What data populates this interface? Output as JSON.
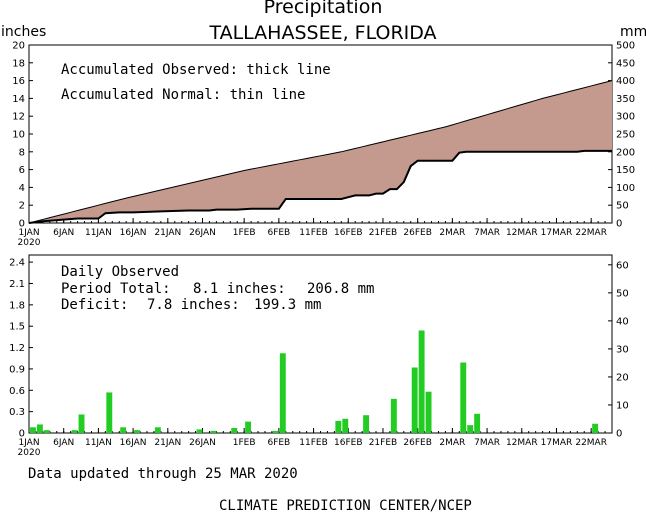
{
  "title": "Precipitation",
  "subtitle": "TALLAHASSEE, FLORIDA",
  "footer": {
    "updated": "Data updated through 25 MAR 2020",
    "credit": "CLIMATE PREDICTION CENTER/NCEP"
  },
  "chart_data": [
    {
      "type": "area",
      "name": "accumulated",
      "ylabel_left": "inches",
      "ylabel_right": "mm",
      "ylim": [
        0,
        20
      ],
      "ylim_right": [
        0,
        500
      ],
      "yticks": [
        "0",
        "2",
        "4",
        "6",
        "8",
        "10",
        "12",
        "14",
        "16",
        "18",
        "20"
      ],
      "yticks_right": [
        "0",
        "50",
        "100",
        "150",
        "200",
        "250",
        "300",
        "350",
        "400",
        "450",
        "500"
      ],
      "xticks": [
        "1JAN",
        "6JAN",
        "11JAN",
        "16JAN",
        "21JAN",
        "26JAN",
        "1FEB",
        "6FEB",
        "11FEB",
        "16FEB",
        "21FEB",
        "26FEB",
        "2MAR",
        "7MAR",
        "12MAR",
        "17MAR",
        "22MAR"
      ],
      "xtick_year": "2020",
      "x_range": [
        "2020-01-01",
        "2020-03-25"
      ],
      "fill_color": "#c49a8e",
      "annotations": [
        "Accumulated Observed: thick line",
        "Accumulated Normal: thin line"
      ],
      "series": [
        {
          "name": "Accumulated Observed",
          "x": [
            "2020-01-01",
            "2020-01-03",
            "2020-01-08",
            "2020-01-11",
            "2020-01-12",
            "2020-01-14",
            "2020-01-16",
            "2020-01-20",
            "2020-01-24",
            "2020-01-27",
            "2020-01-28",
            "2020-01-31",
            "2020-02-02",
            "2020-02-05",
            "2020-02-06",
            "2020-02-07",
            "2020-02-12",
            "2020-02-15",
            "2020-02-16",
            "2020-02-17",
            "2020-02-19",
            "2020-02-20",
            "2020-02-21",
            "2020-02-22",
            "2020-02-23",
            "2020-02-24",
            "2020-02-25",
            "2020-02-26",
            "2020-03-02",
            "2020-03-03",
            "2020-03-04",
            "2020-03-05",
            "2020-03-10",
            "2020-03-20",
            "2020-03-21",
            "2020-03-22",
            "2020-03-25"
          ],
          "values": [
            0,
            0.2,
            0.5,
            0.5,
            1.1,
            1.2,
            1.2,
            1.3,
            1.4,
            1.4,
            1.5,
            1.5,
            1.6,
            1.6,
            1.6,
            2.7,
            2.7,
            2.7,
            2.9,
            3.1,
            3.1,
            3.3,
            3.3,
            3.8,
            3.8,
            4.6,
            6.4,
            7.0,
            7.0,
            7.9,
            8.0,
            8.0,
            8.0,
            8.0,
            8.1,
            8.1,
            8.1
          ]
        },
        {
          "name": "Accumulated Normal",
          "x": [
            "2020-01-01",
            "2020-01-15",
            "2020-02-01",
            "2020-02-15",
            "2020-03-01",
            "2020-03-15",
            "2020-03-25"
          ],
          "values": [
            0,
            2.8,
            5.9,
            8.0,
            10.8,
            14.0,
            16.0
          ]
        }
      ]
    },
    {
      "type": "bar",
      "name": "daily",
      "ylim": [
        0,
        2.5
      ],
      "ylim_right": [
        0,
        63.5
      ],
      "yticks": [
        "0",
        "0.3",
        "0.6",
        "0.9",
        "1.2",
        "1.5",
        "1.8",
        "2.1",
        "2.4"
      ],
      "yticks_right": [
        "0",
        "10",
        "20",
        "30",
        "40",
        "50",
        "60"
      ],
      "xticks": [
        "1JAN",
        "6JAN",
        "11JAN",
        "16JAN",
        "21JAN",
        "26JAN",
        "1FEB",
        "6FEB",
        "11FEB",
        "16FEB",
        "21FEB",
        "26FEB",
        "2MAR",
        "7MAR",
        "12MAR",
        "17MAR",
        "22MAR"
      ],
      "xtick_year": "2020",
      "bar_color": "#22cc22",
      "annotation_title": "Daily Observed",
      "period_total": {
        "label": "Period Total:",
        "inches": "8.1 inches:",
        "mm": "206.8 mm"
      },
      "deficit": {
        "label": "Deficit:",
        "inches": "7.8 inches:",
        "mm": "199.3 mm"
      },
      "bars": [
        {
          "x": "2020-01-01",
          "value": 0.08
        },
        {
          "x": "2020-01-02",
          "value": 0.12
        },
        {
          "x": "2020-01-03",
          "value": 0.04
        },
        {
          "x": "2020-01-07",
          "value": 0.04
        },
        {
          "x": "2020-01-08",
          "value": 0.26
        },
        {
          "x": "2020-01-12",
          "value": 0.57
        },
        {
          "x": "2020-01-14",
          "value": 0.08
        },
        {
          "x": "2020-01-16",
          "value": 0.04
        },
        {
          "x": "2020-01-19",
          "value": 0.08
        },
        {
          "x": "2020-01-25",
          "value": 0.05
        },
        {
          "x": "2020-01-27",
          "value": 0.03
        },
        {
          "x": "2020-01-30",
          "value": 0.07
        },
        {
          "x": "2020-02-01",
          "value": 0.16
        },
        {
          "x": "2020-02-05",
          "value": 0.03
        },
        {
          "x": "2020-02-06",
          "value": 1.12
        },
        {
          "x": "2020-02-14",
          "value": 0.17
        },
        {
          "x": "2020-02-15",
          "value": 0.2
        },
        {
          "x": "2020-02-18",
          "value": 0.25
        },
        {
          "x": "2020-02-22",
          "value": 0.48
        },
        {
          "x": "2020-02-25",
          "value": 0.92
        },
        {
          "x": "2020-02-26",
          "value": 1.44
        },
        {
          "x": "2020-02-27",
          "value": 0.58
        },
        {
          "x": "2020-03-03",
          "value": 0.99
        },
        {
          "x": "2020-03-04",
          "value": 0.11
        },
        {
          "x": "2020-03-05",
          "value": 0.27
        },
        {
          "x": "2020-03-22",
          "value": 0.13
        }
      ]
    }
  ]
}
